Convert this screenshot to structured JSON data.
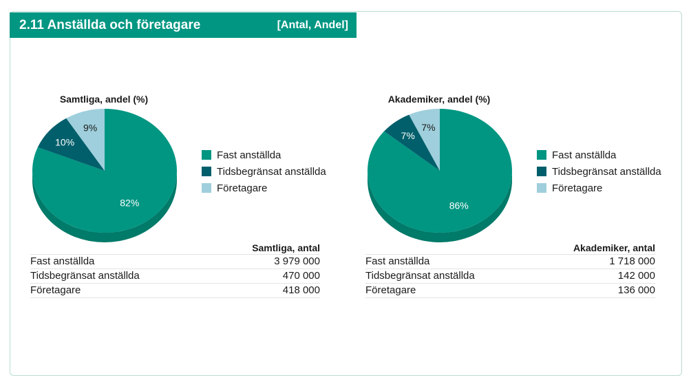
{
  "header": {
    "title": "2.11  Anställda och företagare",
    "unit": "[Antal, Andel]"
  },
  "colors": {
    "fast": "#009682",
    "tids": "#005f6b",
    "foretagare": "#9fcfdc",
    "header_bg": "#009682"
  },
  "chart_data": [
    {
      "type": "pie",
      "title": "Samtliga, andel (%)",
      "categories": [
        "Fast anställda",
        "Tidsbegränsat anställda",
        "Företagare"
      ],
      "values": [
        82,
        10,
        9
      ],
      "labels": [
        "82%",
        "10%",
        "9%"
      ],
      "legend": [
        "Fast anställda",
        "Tidsbegränsat anställda",
        "Företagare"
      ],
      "legend_position": "right"
    },
    {
      "type": "pie",
      "title": "Akademiker, andel (%)",
      "categories": [
        "Fast anställda",
        "Tidsbegränsat anställda",
        "Företagare"
      ],
      "values": [
        86,
        7,
        7
      ],
      "labels": [
        "86%",
        "7%",
        "7%"
      ],
      "legend": [
        "Fast anställda",
        "Tidsbegränsat anställda",
        "Företagare"
      ],
      "legend_position": "right"
    },
    {
      "type": "table",
      "header": "Samtliga, antal",
      "rows": [
        {
          "label": "Fast anställda",
          "value": "3 979 000"
        },
        {
          "label": "Tidsbegränsat anställda",
          "value": "470 000"
        },
        {
          "label": "Företagare",
          "value": "418 000"
        }
      ]
    },
    {
      "type": "table",
      "header": "Akademiker, antal",
      "rows": [
        {
          "label": "Fast anställda",
          "value": "1 718 000"
        },
        {
          "label": "Tidsbegränsat anställda",
          "value": "142 000"
        },
        {
          "label": "Företagare",
          "value": "136 000"
        }
      ]
    }
  ]
}
